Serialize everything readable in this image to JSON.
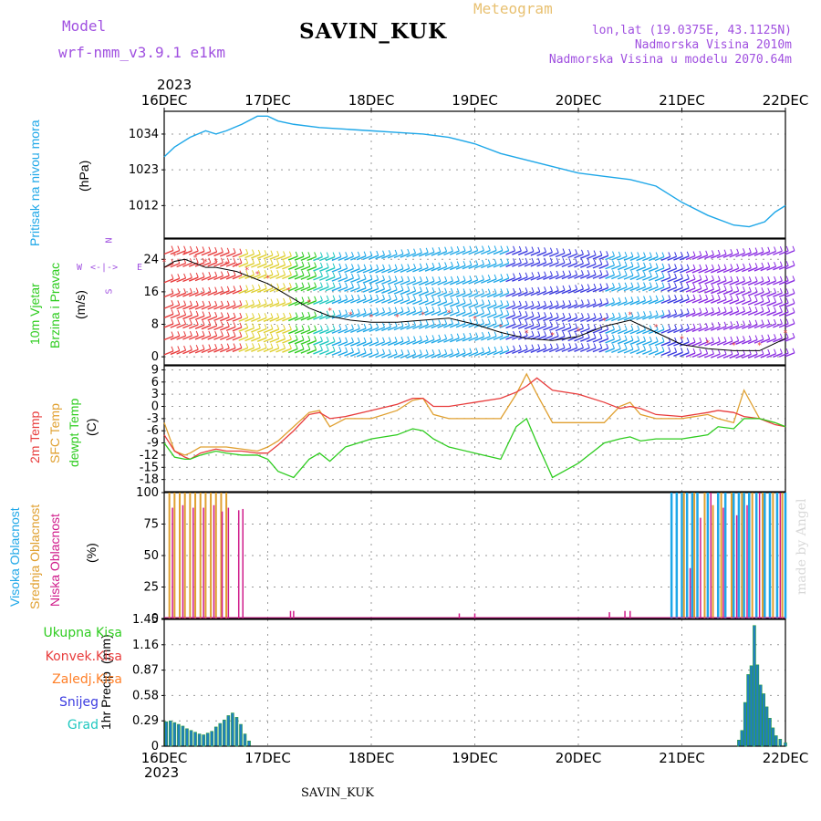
{
  "header": {
    "model_label": "Model",
    "model_value": "wrf-nmm_v3.9.1  e1km",
    "title": "SAVIN_KUK",
    "meteogram": "Meteogram",
    "lonlat": "lon,lat (19.0375E, 43.1125N)",
    "altitude": "Nadmorska Visina 2010m",
    "model_altitude": "Nadmorska Visina u modelu 2070.64m",
    "footer": "SAVIN_KUK",
    "watermark": "made by Angel",
    "year_top": "2023",
    "year_bottom": "2023"
  },
  "x_axis": {
    "labels": [
      "16DEC",
      "17DEC",
      "18DEC",
      "19DEC",
      "20DEC",
      "21DEC",
      "22DEC"
    ],
    "range_days": [
      0,
      6
    ]
  },
  "colors": {
    "pressure": "#1ea7e8",
    "temp2m": "#e83c3c",
    "sfc": "#e0a030",
    "dew": "#2ecc1f",
    "high_cloud": "#1ea7e8",
    "mid_cloud": "#e0a030",
    "low_cloud": "#d01c8b",
    "precip": "#1f7fbf",
    "precip_conv": "#2e9e3e",
    "wind_line": "#000000",
    "gust": "#e83c3c"
  },
  "panels": {
    "pressure": {
      "labels": [
        "Pritisak na nivou mora",
        "(hPa)"
      ],
      "yticks": [
        "1034",
        "1023",
        "1012"
      ],
      "ylim": [
        1002,
        1041
      ]
    },
    "wind": {
      "labels": [
        "10m Vjetar",
        "Brzina i Pravac",
        "(m/s)"
      ],
      "yticks": [
        "24",
        "16",
        "8",
        "0"
      ],
      "ylim": [
        -2,
        29
      ],
      "compass": {
        "n": "N",
        "s": "S",
        "w": "W",
        "e": "E"
      }
    },
    "temp": {
      "labels": [
        "2m Temp",
        "SFC Temp",
        "dewpt Temp",
        "(C)"
      ],
      "yticks": [
        "9",
        "6",
        "3",
        "0",
        "-3",
        "-6",
        "-9",
        "-12",
        "-15",
        "-18"
      ],
      "ylim": [
        -21,
        10
      ]
    },
    "cloud": {
      "labels": [
        "Visoka Oblacnost",
        "Srednja Oblacnost",
        "Niska Oblacnost",
        "(%)"
      ],
      "yticks": [
        "100",
        "75",
        "50",
        "25",
        "0"
      ],
      "ylim": [
        0,
        100
      ]
    },
    "precip": {
      "labels": [
        "1hr Precip",
        "(mm)"
      ],
      "legend": [
        "Ukupna Kisa",
        "Konvek.Kisa",
        "Zaledj.Kisa",
        "Snijeg",
        "Grad"
      ],
      "legend_colors": [
        "#2ecc1f",
        "#e83c3c",
        "#ff7f27",
        "#3a3ae0",
        "#20c8c0"
      ],
      "yticks": [
        "1.45",
        "1.16",
        "0.87",
        "0.58",
        "0.29",
        "0"
      ],
      "ylim": [
        0,
        1.45
      ]
    }
  },
  "chart_data": [
    {
      "type": "line",
      "name": "pressure",
      "x": [
        0,
        0.1,
        0.25,
        0.4,
        0.5,
        0.6,
        0.75,
        0.9,
        1.0,
        1.1,
        1.25,
        1.5,
        1.75,
        2.0,
        2.25,
        2.5,
        2.75,
        3.0,
        3.25,
        3.5,
        3.75,
        4.0,
        4.25,
        4.5,
        4.75,
        5.0,
        5.25,
        5.5,
        5.65,
        5.8,
        5.9,
        6.0
      ],
      "y": [
        1027,
        1030,
        1033,
        1035,
        1034,
        1035,
        1037,
        1039.5,
        1039.5,
        1038,
        1037,
        1036,
        1035.5,
        1035,
        1034.5,
        1034,
        1033,
        1031,
        1028,
        1026,
        1024,
        1022,
        1021,
        1020,
        1018,
        1013,
        1009,
        1006,
        1005.5,
        1007,
        1010,
        1012
      ]
    },
    {
      "type": "line",
      "name": "wind_speed",
      "x": [
        0,
        0.1,
        0.2,
        0.3,
        0.4,
        0.5,
        0.6,
        0.7,
        0.8,
        0.9,
        1.0,
        1.2,
        1.4,
        1.6,
        1.8,
        2.0,
        2.25,
        2.5,
        2.75,
        3.0,
        3.25,
        3.5,
        3.75,
        4.0,
        4.25,
        4.5,
        4.75,
        5.0,
        5.25,
        5.5,
        5.75,
        6.0
      ],
      "y": [
        22,
        23.5,
        24,
        23,
        22,
        22,
        21.5,
        21,
        20,
        19,
        18,
        15,
        12,
        10,
        9,
        8.5,
        8.5,
        9,
        9.5,
        8,
        6,
        4.5,
        4,
        5,
        7.5,
        9,
        6,
        3,
        2,
        1.5,
        1.5,
        4.5
      ]
    },
    {
      "type": "line",
      "name": "temp2m",
      "x": [
        0,
        0.1,
        0.2,
        0.25,
        0.35,
        0.5,
        0.6,
        0.75,
        0.9,
        1.0,
        1.1,
        1.25,
        1.4,
        1.5,
        1.6,
        1.75,
        2.0,
        2.25,
        2.4,
        2.5,
        2.6,
        2.75,
        3.0,
        3.25,
        3.4,
        3.5,
        3.6,
        3.75,
        4.0,
        4.25,
        4.4,
        4.5,
        4.6,
        4.75,
        5.0,
        5.25,
        5.35,
        5.5,
        5.6,
        5.75,
        5.9,
        6.0
      ],
      "y": [
        -7,
        -11,
        -12.5,
        -13,
        -11.5,
        -10.5,
        -11,
        -11,
        -11.5,
        -11.5,
        -9.5,
        -6,
        -2,
        -1.5,
        -3,
        -2.5,
        -1,
        0.5,
        2,
        2,
        0,
        0,
        1,
        2,
        3.5,
        5,
        7,
        4,
        3,
        1,
        -0.5,
        0,
        -0.5,
        -2,
        -2.5,
        -1.5,
        -1,
        -1.5,
        -2.5,
        -3,
        -4.5,
        -5
      ]
    },
    {
      "type": "line",
      "name": "sfc_temp",
      "x": [
        0,
        0.1,
        0.2,
        0.25,
        0.35,
        0.5,
        0.6,
        0.75,
        0.9,
        1.0,
        1.1,
        1.25,
        1.4,
        1.5,
        1.6,
        1.75,
        2.0,
        2.25,
        2.4,
        2.5,
        2.6,
        2.75,
        3.0,
        3.25,
        3.4,
        3.5,
        3.6,
        3.75,
        4.0,
        4.25,
        4.4,
        4.5,
        4.6,
        4.75,
        5.0,
        5.25,
        5.35,
        5.5,
        5.6,
        5.75,
        5.9,
        6.0
      ],
      "y": [
        -4,
        -11,
        -12,
        -11.5,
        -10,
        -10,
        -10,
        -10.5,
        -11,
        -10,
        -8.5,
        -5,
        -1.5,
        -1,
        -5,
        -3,
        -3,
        -1,
        1.5,
        2,
        -2,
        -3,
        -3,
        -3,
        3,
        8,
        3,
        -4,
        -4,
        -4,
        0,
        1,
        -2,
        -3,
        -3,
        -2,
        -3,
        -4,
        4,
        -3,
        -4,
        -5
      ]
    },
    {
      "type": "line",
      "name": "dewpoint",
      "x": [
        0,
        0.1,
        0.2,
        0.25,
        0.35,
        0.5,
        0.6,
        0.75,
        0.9,
        1.0,
        1.1,
        1.25,
        1.4,
        1.5,
        1.6,
        1.75,
        2.0,
        2.25,
        2.4,
        2.5,
        2.6,
        2.75,
        3.0,
        3.25,
        3.4,
        3.5,
        3.6,
        3.75,
        4.0,
        4.25,
        4.4,
        4.5,
        4.6,
        4.75,
        5.0,
        5.25,
        5.35,
        5.5,
        5.6,
        5.75,
        5.9,
        6.0
      ],
      "y": [
        -9,
        -12.5,
        -13,
        -13,
        -12,
        -11,
        -11.5,
        -12,
        -12,
        -13,
        -16,
        -17.5,
        -13,
        -11.5,
        -13.5,
        -10,
        -8,
        -7,
        -5.5,
        -6,
        -8,
        -10,
        -11.5,
        -13,
        -5,
        -3,
        -9,
        -17.5,
        -14,
        -9,
        -8,
        -7.5,
        -8.5,
        -8,
        -8,
        -7,
        -5,
        -5.5,
        -3,
        -3,
        -4,
        -5
      ]
    },
    {
      "type": "bar",
      "name": "cloud_cover",
      "high": {
        "x": [
          4.9,
          4.95,
          5.0,
          5.05,
          5.1,
          5.15,
          5.25,
          5.35,
          5.42,
          5.5,
          5.55,
          5.6,
          5.65,
          5.72,
          5.8,
          5.85,
          5.92,
          6.0
        ],
        "values": [
          100,
          100,
          100,
          100,
          100,
          100,
          100,
          100,
          100,
          100,
          100,
          100,
          100,
          100,
          100,
          100,
          100,
          100
        ]
      },
      "mid": {
        "x": [
          0.05,
          0.1,
          0.15,
          0.2,
          0.25,
          0.3,
          0.35,
          0.4,
          0.45,
          0.5,
          0.55,
          0.6,
          5.02,
          5.12,
          5.22,
          5.3,
          5.38,
          5.48,
          5.58,
          5.68,
          5.78,
          5.88,
          5.97
        ],
        "values": [
          100,
          100,
          100,
          100,
          100,
          100,
          100,
          100,
          100,
          100,
          100,
          100,
          100,
          100,
          100,
          90,
          100,
          100,
          100,
          100,
          100,
          100,
          100
        ]
      },
      "low": {
        "x": [
          0.08,
          0.18,
          0.28,
          0.38,
          0.48,
          0.56,
          0.62,
          0.72,
          0.76,
          1.22,
          1.25,
          2.85,
          3.0,
          4.3,
          4.45,
          4.5,
          5.08,
          5.18,
          5.28,
          5.4,
          5.53,
          5.63,
          5.75,
          5.95
        ],
        "values": [
          88,
          90,
          88,
          88,
          90,
          85,
          88,
          86,
          87,
          6,
          6,
          4,
          4,
          5,
          6,
          6,
          40,
          80,
          100,
          88,
          82,
          90,
          100,
          100
        ]
      }
    },
    {
      "type": "bar",
      "name": "precip_1hr",
      "x": [
        0.02,
        0.06,
        0.1,
        0.14,
        0.18,
        0.22,
        0.26,
        0.3,
        0.34,
        0.38,
        0.42,
        0.46,
        0.5,
        0.54,
        0.58,
        0.62,
        0.66,
        0.7,
        0.74,
        0.78,
        0.82,
        5.55,
        5.58,
        5.61,
        5.64,
        5.67,
        5.7,
        5.73,
        5.76,
        5.79,
        5.82,
        5.85,
        5.88,
        5.91,
        5.95,
        6.0
      ],
      "values": [
        0.28,
        0.29,
        0.27,
        0.25,
        0.23,
        0.2,
        0.18,
        0.16,
        0.14,
        0.13,
        0.15,
        0.17,
        0.22,
        0.26,
        0.3,
        0.35,
        0.38,
        0.33,
        0.25,
        0.14,
        0.06,
        0.07,
        0.18,
        0.5,
        0.82,
        0.92,
        1.38,
        0.93,
        0.7,
        0.6,
        0.45,
        0.32,
        0.21,
        0.12,
        0.08,
        0.04
      ]
    }
  ]
}
